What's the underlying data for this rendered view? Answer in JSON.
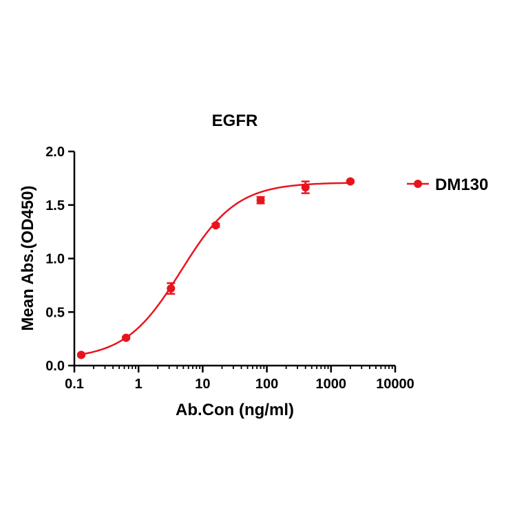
{
  "chart_data": {
    "type": "scatter",
    "title": "EGFR",
    "xlabel": "Ab.Con (ng/ml)",
    "ylabel": "Mean Abs.(OD450)",
    "xscale": "log",
    "xlim": [
      0.1,
      10000
    ],
    "ylim": [
      0,
      2.0
    ],
    "xticks": [
      0.1,
      1,
      10,
      100,
      1000,
      10000
    ],
    "xtick_labels": [
      "0.1",
      "1",
      "10",
      "100",
      "1000",
      "10000"
    ],
    "yticks": [
      0,
      0.5,
      1.0,
      1.5,
      2.0
    ],
    "ytick_labels": [
      "0.0",
      "0.5",
      "1.0",
      "1.5",
      "2.0"
    ],
    "grid": false,
    "legend_position": "right",
    "series": [
      {
        "name": "DM130",
        "color": "#e8141c",
        "marker": "circle",
        "x": [
          0.128,
          0.64,
          3.2,
          16,
          80,
          400,
          2000
        ],
        "y": [
          0.1,
          0.26,
          0.72,
          1.31,
          1.545,
          1.665,
          1.72
        ],
        "err": [
          0.01,
          0.01,
          0.05,
          0.015,
          0.03,
          0.055,
          0.01
        ],
        "fit": {
          "model": "4PL",
          "bottom": 0.06,
          "top": 1.71,
          "ec50": 4.6,
          "hill": 1.0
        }
      }
    ]
  }
}
